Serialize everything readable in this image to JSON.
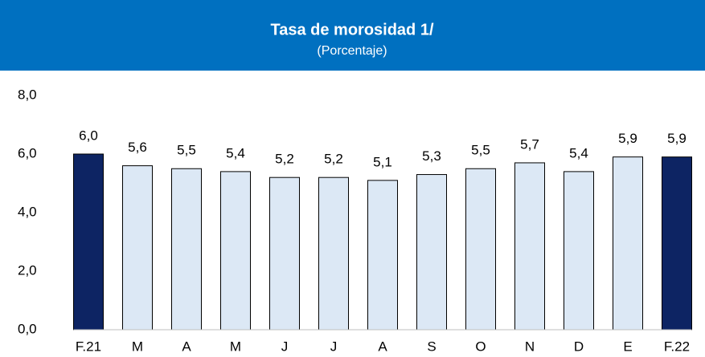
{
  "chart_data": {
    "type": "bar",
    "title": "Tasa de morosidad 1/",
    "subtitle": "(Porcentaje)",
    "categories": [
      "F.21",
      "M",
      "A",
      "M",
      "J",
      "J",
      "A",
      "S",
      "O",
      "N",
      "D",
      "E",
      "F.22"
    ],
    "values": [
      6.0,
      5.6,
      5.5,
      5.4,
      5.2,
      5.2,
      5.1,
      5.3,
      5.5,
      5.7,
      5.4,
      5.9,
      5.9
    ],
    "value_labels": [
      "6,0",
      "5,6",
      "5,5",
      "5,4",
      "5,2",
      "5,2",
      "5,1",
      "5,3",
      "5,5",
      "5,7",
      "5,4",
      "5,9",
      "5,9"
    ],
    "colors": [
      "#0d2463",
      "#dce8f5",
      "#dce8f5",
      "#dce8f5",
      "#dce8f5",
      "#dce8f5",
      "#dce8f5",
      "#dce8f5",
      "#dce8f5",
      "#dce8f5",
      "#dce8f5",
      "#dce8f5",
      "#0d2463"
    ],
    "header_color": "#0070c0",
    "ylim": [
      0,
      8
    ],
    "yticks": [
      {
        "value": 0,
        "label": "0,0"
      },
      {
        "value": 2,
        "label": "2,0"
      },
      {
        "value": 4,
        "label": "4,0"
      },
      {
        "value": 6,
        "label": "6,0"
      },
      {
        "value": 8,
        "label": "8,0"
      }
    ],
    "grid": false
  }
}
